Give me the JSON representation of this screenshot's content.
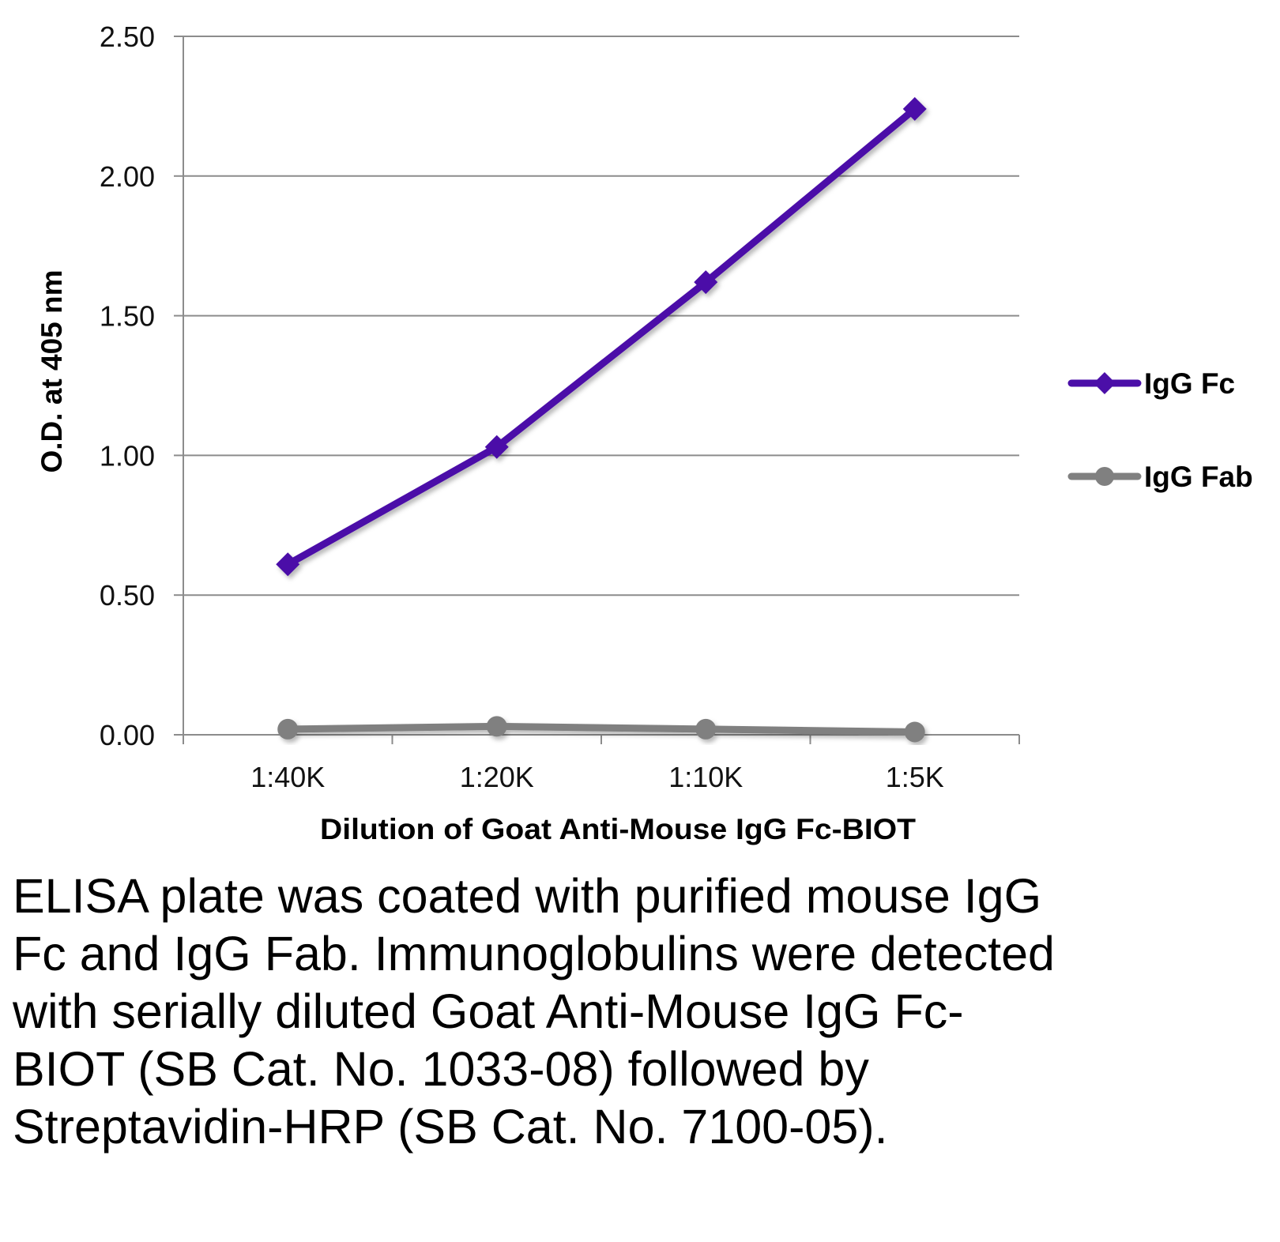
{
  "chart_data": {
    "type": "line",
    "title": "",
    "xlabel": "Dilution of Goat Anti-Mouse IgG Fc-BIOT",
    "ylabel": "O.D. at 405 nm",
    "categories": [
      "1:40K",
      "1:20K",
      "1:10K",
      "1:5K"
    ],
    "ylim": [
      0,
      2.5
    ],
    "yticks": [
      "0.00",
      "0.50",
      "1.00",
      "1.50",
      "2.00",
      "2.50"
    ],
    "grid": "horizontal",
    "legend_position": "right",
    "series": [
      {
        "name": "IgG Fc",
        "values": [
          0.61,
          1.03,
          1.62,
          2.24
        ],
        "color": "#4b0fa8",
        "marker": "diamond"
      },
      {
        "name": "IgG Fab",
        "values": [
          0.02,
          0.03,
          0.02,
          0.01
        ],
        "color": "#808080",
        "marker": "circle"
      }
    ]
  },
  "caption": "ELISA plate was coated with purified mouse IgG Fc and IgG Fab.  Immunoglobulins were detected with serially diluted Goat Anti-Mouse IgG Fc-BIOT (SB Cat. No. 1033-08) followed by Streptavidin-HRP (SB Cat. No. 7100-05)."
}
